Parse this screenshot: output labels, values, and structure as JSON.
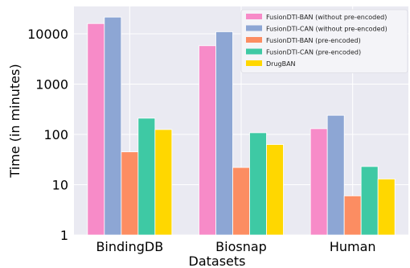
{
  "chart_data": {
    "type": "bar",
    "xlabel": "Datasets",
    "ylabel": "Time (in minutes)",
    "yscale": "log",
    "ylim": [
      1,
      35000
    ],
    "yticks": [
      1,
      10,
      100,
      1000,
      10000
    ],
    "ytick_labels": [
      "1",
      "10",
      "100",
      "1000",
      "10000"
    ],
    "grid": true,
    "legend_position": "top-right",
    "categories": [
      "BindingDB",
      "Biosnap",
      "Human"
    ],
    "series": [
      {
        "name": "FusionDTI-BAN (without pre-encoded)",
        "color": "#f78bc8",
        "values": [
          16000,
          5800,
          130
        ]
      },
      {
        "name": "FusionDTI-CAN (without pre-encoded)",
        "color": "#8da6d4",
        "values": [
          21500,
          11000,
          240
        ]
      },
      {
        "name": "FusionDTI-BAN (pre-encoded)",
        "color": "#fc8d62",
        "values": [
          45,
          22,
          6
        ]
      },
      {
        "name": "FusionDTI-CAN (pre-encoded)",
        "color": "#3ec9a4",
        "values": [
          210,
          108,
          23
        ]
      },
      {
        "name": "DrugBAN",
        "color": "#ffd700",
        "values": [
          125,
          63,
          13
        ]
      }
    ]
  }
}
